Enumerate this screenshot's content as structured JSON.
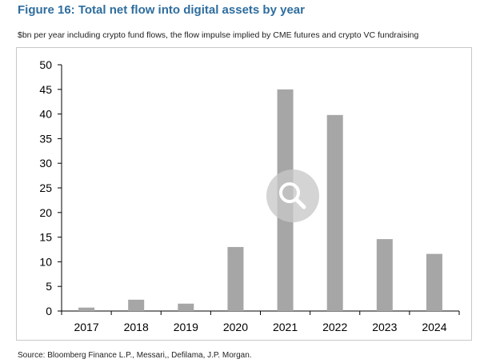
{
  "figure": {
    "title": "Figure 16: Total net flow into digital assets by year",
    "subtitle": "$bn per year including crypto fund flows, the flow impulse implied by CME futures and crypto VC fundraising",
    "source": "Source: Bloomberg Finance L.P., Messari,, Defilama, J.P. Morgan."
  },
  "colors": {
    "title": "#2e6d9e",
    "bar": "#a6a6a6",
    "axis": "#000000",
    "frame": "#c8c8c8"
  },
  "chart_data": {
    "type": "bar",
    "title": "Total net flow into digital assets by year",
    "xlabel": "",
    "ylabel": "$bn",
    "categories": [
      "2017",
      "2018",
      "2019",
      "2020",
      "2021",
      "2022",
      "2023",
      "2024"
    ],
    "values": [
      0.7,
      2.3,
      1.5,
      13.0,
      45.0,
      39.8,
      14.6,
      11.6
    ],
    "ylim": [
      0,
      50
    ],
    "yticks": [
      0,
      5,
      10,
      15,
      20,
      25,
      30,
      35,
      40,
      45,
      50
    ],
    "grid": false,
    "legend": "none"
  },
  "overlay": {
    "icon": "magnifier-icon"
  }
}
